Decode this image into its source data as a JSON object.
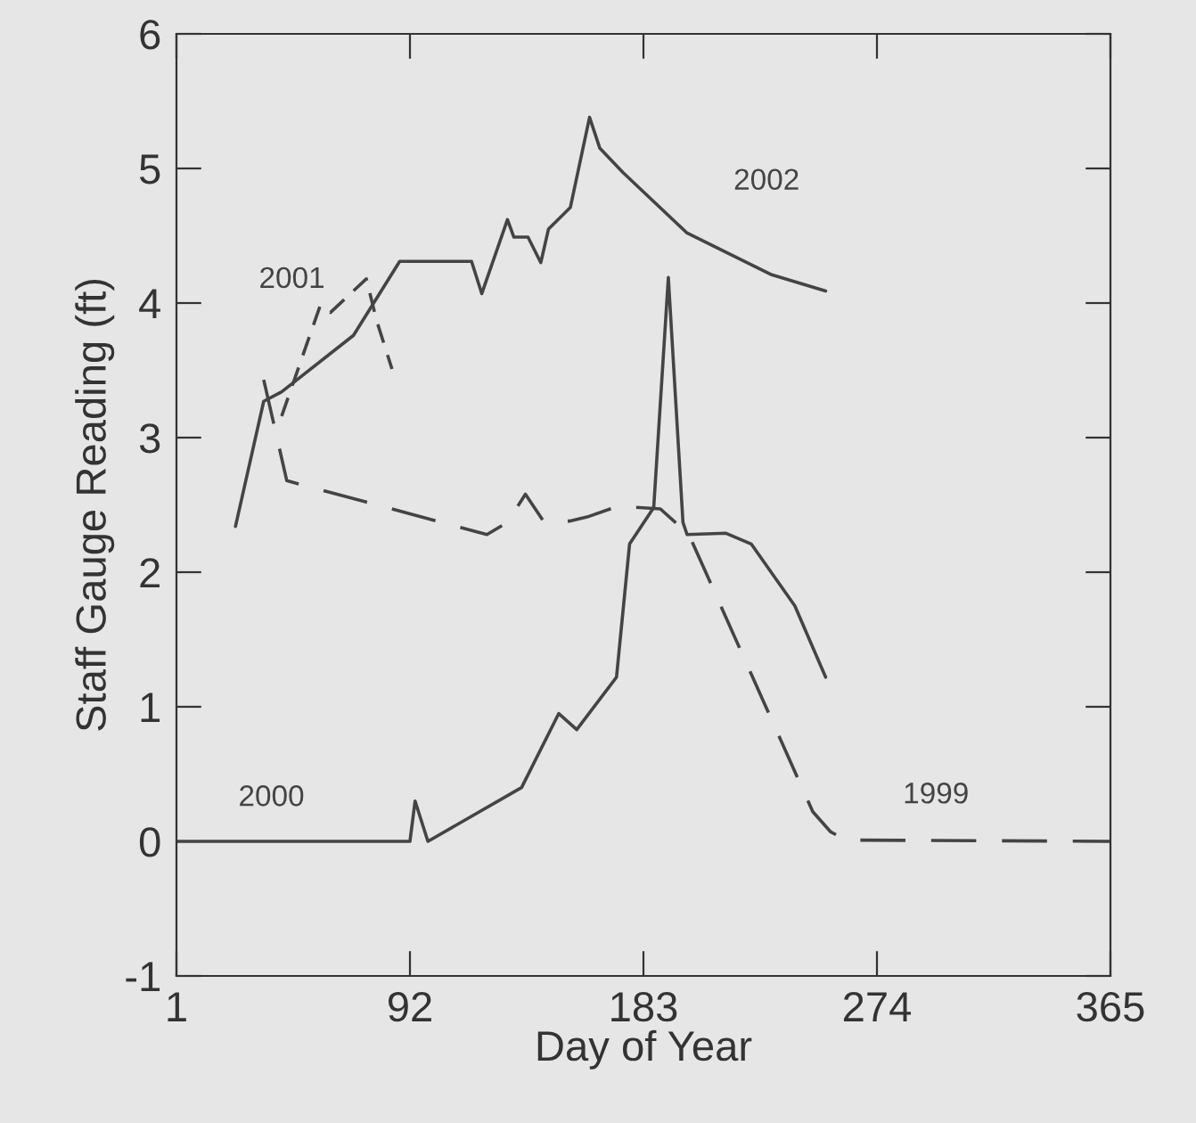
{
  "chart_data": {
    "type": "line",
    "xlabel": "Day of Year",
    "ylabel": "Staff Gauge Reading (ft)",
    "xlim": [
      1,
      365
    ],
    "xticks": [
      1,
      92,
      183,
      274,
      365
    ],
    "ylim": [
      -1,
      6
    ],
    "yticks": [
      -1,
      0,
      1,
      2,
      3,
      4,
      5,
      6
    ],
    "grid": false,
    "legend": false,
    "marker": "none",
    "series": [
      {
        "name": "2002",
        "color": "#444444",
        "line_style": "solid",
        "x": [
          24,
          35,
          42,
          70,
          88,
          116,
          120,
          130,
          132.5,
          138,
          143,
          146,
          154.5,
          162,
          166,
          175,
          200,
          233,
          254
        ],
        "values": [
          2.34,
          3.27,
          3.34,
          3.76,
          4.31,
          4.31,
          4.07,
          4.62,
          4.49,
          4.49,
          4.3,
          4.55,
          4.71,
          5.38,
          5.15,
          4.97,
          4.52,
          4.21,
          4.09
        ]
      },
      {
        "name": "2001",
        "color": "#444444",
        "line_style": "dashed",
        "x": [
          42,
          57,
          61,
          75,
          79,
          85
        ],
        "values": [
          3.16,
          3.98,
          3.93,
          4.18,
          3.87,
          3.51
        ]
      },
      {
        "name": "2000",
        "color": "#444444",
        "line_style": "solid",
        "x": [
          1,
          92,
          94,
          99,
          135.5,
          150,
          157,
          172.5,
          177.6,
          187,
          192.7,
          198.4,
          200,
          215,
          225,
          242,
          254
        ],
        "values": [
          0,
          0,
          0.3,
          0,
          0.4,
          0.95,
          0.83,
          1.22,
          2.21,
          2.48,
          4.19,
          2.37,
          2.28,
          2.29,
          2.21,
          1.75,
          1.22
        ]
      },
      {
        "name": "1999",
        "color": "#444444",
        "line_style": "longdash",
        "x": [
          35,
          44,
          122,
          130,
          137,
          144,
          154.5,
          161,
          173,
          189.6,
          200.7,
          249,
          256,
          262,
          365
        ],
        "values": [
          3.43,
          2.68,
          2.28,
          2.37,
          2.58,
          2.38,
          2.38,
          2.41,
          2.49,
          2.47,
          2.28,
          0.22,
          0.07,
          0.01,
          0
        ]
      }
    ]
  }
}
